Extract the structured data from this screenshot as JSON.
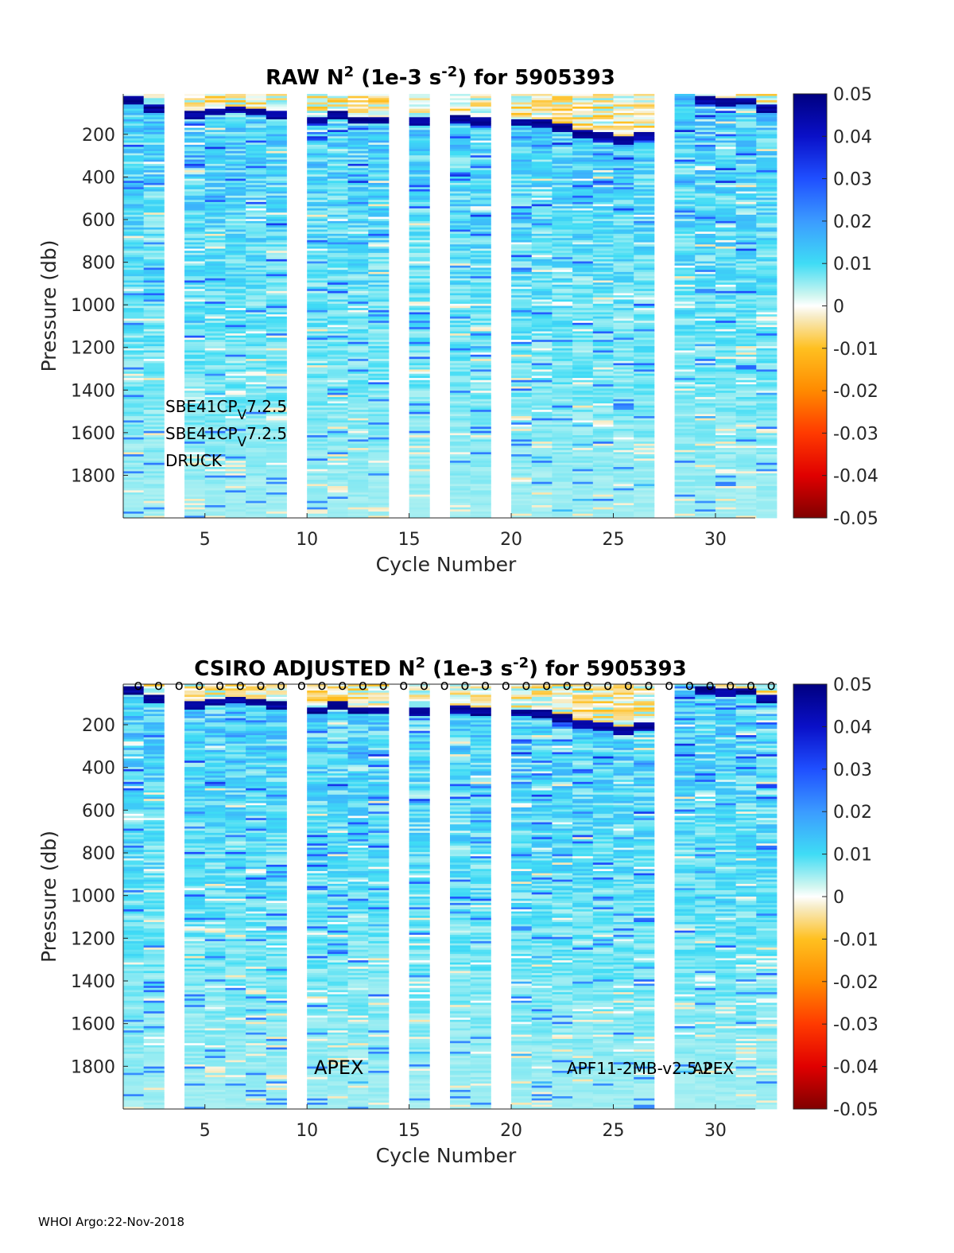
{
  "footer": "WHOI Argo:22-Nov-2018",
  "chart_data": [
    {
      "type": "heatmap",
      "title_prefix": "RAW N",
      "title_sup1": "2",
      "title_mid": " (1e-3 s",
      "title_sup2": "-2",
      "title_suffix": ") for 5905393",
      "xlabel": "Cycle Number",
      "ylabel": "Pressure (db)",
      "xlim": [
        1,
        32
      ],
      "ylim": [
        2000,
        10
      ],
      "xticks": [
        5,
        10,
        15,
        20,
        25,
        30
      ],
      "yticks": [
        200,
        400,
        600,
        800,
        1000,
        1200,
        1400,
        1600,
        1800
      ],
      "clim": [
        -0.05,
        0.05
      ],
      "colorbar_ticks": [
        "0.05",
        "0.04",
        "0.03",
        "0.02",
        "0.01",
        "0",
        "-0.01",
        "-0.02",
        "-0.03",
        "-0.04",
        "-0.05"
      ],
      "missing_cycles": [
        3,
        9,
        14,
        16,
        19,
        27
      ],
      "thermocline_pressure_db": [
        40,
        80,
        null,
        110,
        95,
        85,
        95,
        110,
        null,
        135,
        110,
        135,
        135,
        null,
        140,
        null,
        130,
        140,
        null,
        145,
        150,
        170,
        200,
        210,
        230,
        210,
        170,
        null,
        40,
        50,
        45,
        80
      ],
      "text_annotations": [
        "SBE41CP V 7.2.5",
        "SBE41CP V 7.2.5",
        "DRUCK"
      ],
      "annotation_lines": [
        {
          "main": "SBE41CP",
          "sub": "V",
          "tail": "7.2.5"
        },
        {
          "main": "SBE41CP",
          "sub": "V",
          "tail": "7.2.5"
        },
        {
          "main": "DRUCK",
          "sub": "",
          "tail": ""
        }
      ],
      "qc_markers": []
    },
    {
      "type": "heatmap",
      "title_prefix": "CSIRO  ADJUSTED N",
      "title_sup1": "2",
      "title_mid": " (1e-3 s",
      "title_sup2": "-2",
      "title_suffix": ") for 5905393",
      "xlabel": "Cycle Number",
      "ylabel": "Pressure (db)",
      "xlim": [
        1,
        32
      ],
      "ylim": [
        2000,
        10
      ],
      "xticks": [
        5,
        10,
        15,
        20,
        25,
        30
      ],
      "yticks": [
        200,
        400,
        600,
        800,
        1000,
        1200,
        1400,
        1600,
        1800
      ],
      "clim": [
        -0.05,
        0.05
      ],
      "colorbar_ticks": [
        "0.05",
        "0.04",
        "0.03",
        "0.02",
        "0.01",
        "0",
        "-0.01",
        "-0.02",
        "-0.03",
        "-0.04",
        "-0.05"
      ],
      "missing_cycles": [
        3,
        9,
        14,
        16,
        19,
        27
      ],
      "thermocline_pressure_db": [
        40,
        80,
        null,
        110,
        95,
        85,
        95,
        110,
        null,
        135,
        110,
        135,
        135,
        null,
        140,
        null,
        130,
        140,
        null,
        145,
        150,
        170,
        200,
        210,
        230,
        210,
        170,
        null,
        40,
        50,
        45,
        80
      ],
      "text_annotations": [
        "APEX",
        "APF11-2MB-v2.5.2",
        "APEX"
      ],
      "annotation_lines": [],
      "qc_markers": [
        {
          "cycle": 1,
          "label": "o"
        },
        {
          "cycle": 2,
          "label": "o"
        },
        {
          "cycle": 3,
          "label": "o"
        },
        {
          "cycle": 4,
          "label": "o"
        },
        {
          "cycle": 5,
          "label": "o"
        },
        {
          "cycle": 6,
          "label": "o"
        },
        {
          "cycle": 7,
          "label": "o"
        },
        {
          "cycle": 8,
          "label": "o"
        },
        {
          "cycle": 9,
          "label": "o"
        },
        {
          "cycle": 10,
          "label": "o"
        },
        {
          "cycle": 11,
          "label": "o"
        },
        {
          "cycle": 12,
          "label": "o"
        },
        {
          "cycle": 13,
          "label": "o"
        },
        {
          "cycle": 14,
          "label": "o"
        },
        {
          "cycle": 15,
          "label": "o"
        },
        {
          "cycle": 16,
          "label": "o"
        },
        {
          "cycle": 17,
          "label": "o"
        },
        {
          "cycle": 18,
          "label": "o"
        },
        {
          "cycle": 19,
          "label": "o"
        },
        {
          "cycle": 20,
          "label": "o"
        },
        {
          "cycle": 21,
          "label": "o"
        },
        {
          "cycle": 22,
          "label": "o"
        },
        {
          "cycle": 23,
          "label": "o"
        },
        {
          "cycle": 24,
          "label": "o"
        },
        {
          "cycle": 25,
          "label": "o"
        },
        {
          "cycle": 26,
          "label": "o"
        },
        {
          "cycle": 27,
          "label": "o"
        },
        {
          "cycle": 28,
          "label": "o"
        },
        {
          "cycle": 29,
          "label": "o"
        },
        {
          "cycle": 30,
          "label": "o"
        },
        {
          "cycle": 31,
          "label": "o"
        },
        {
          "cycle": 32,
          "label": "o"
        }
      ]
    }
  ]
}
